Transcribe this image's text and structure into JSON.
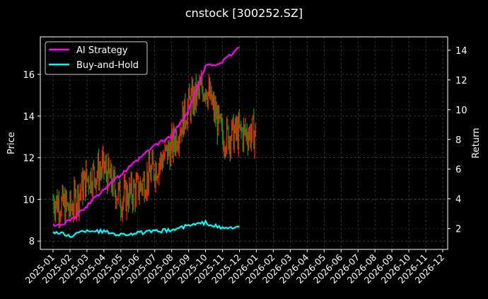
{
  "title": "cnstock [300252.SZ]",
  "chart_data": {
    "type": "line",
    "title": "cnstock [300252.SZ]",
    "xlabel": "",
    "ylabel": "Price",
    "ylabel_right": "Return",
    "grid": true,
    "legend_position": "upper left",
    "ylim_left": [
      7.6,
      17.8
    ],
    "ylim_right": [
      0.6,
      14.9
    ],
    "yticks_left": [
      8,
      10,
      12,
      14,
      16
    ],
    "yticks_right": [
      2,
      4,
      6,
      8,
      10,
      12,
      14
    ],
    "xticks": [
      "2025-01",
      "2025-02",
      "2025-03",
      "2025-04",
      "2025-05",
      "2025-06",
      "2025-07",
      "2025-08",
      "2025-09",
      "2025-10",
      "2025-11",
      "2025-12",
      "2026-01",
      "2026-02",
      "2026-03",
      "2026-04",
      "2026-05",
      "2026-06",
      "2026-07",
      "2026-08",
      "2026-09",
      "2026-10",
      "2026-11",
      "2026-12"
    ],
    "price_candles": {
      "description": "Daily OHLC bars (red up / green down), approximate closes by month",
      "x": [
        "2025-01",
        "2025-02",
        "2025-03",
        "2025-04",
        "2025-05",
        "2025-06",
        "2025-07",
        "2025-08",
        "2025-09",
        "2025-10",
        "2025-11",
        "2025-12"
      ],
      "values": [
        10.0,
        9.5,
        11.0,
        11.5,
        10.0,
        10.5,
        11.5,
        12.5,
        14.5,
        15.5,
        13.0,
        13.2
      ],
      "up_color": "#ff2200",
      "down_color": "#228b22"
    },
    "series": [
      {
        "name": "AI Strategy",
        "color": "#ff00ff",
        "axis": "right",
        "x": [
          "2025-01",
          "2025-02",
          "2025-03",
          "2025-04",
          "2025-05",
          "2025-06",
          "2025-07",
          "2025-08",
          "2025-09",
          "2025-10",
          "2025-11",
          "2025-12"
        ],
        "values": [
          2.2,
          2.5,
          3.5,
          4.7,
          5.6,
          6.6,
          7.6,
          8.2,
          10.0,
          12.9,
          13.2,
          14.2
        ]
      },
      {
        "name": "Buy-and-Hold",
        "color": "#00ffff",
        "axis": "right",
        "x": [
          "2025-01",
          "2025-02",
          "2025-03",
          "2025-04",
          "2025-05",
          "2025-06",
          "2025-07",
          "2025-08",
          "2025-09",
          "2025-10",
          "2025-11",
          "2025-12"
        ],
        "values": [
          1.8,
          1.5,
          1.9,
          1.8,
          1.6,
          1.7,
          1.8,
          1.9,
          2.2,
          2.4,
          2.0,
          2.1
        ]
      }
    ]
  },
  "legend": [
    {
      "label": "AI Strategy",
      "color": "#ff00ff"
    },
    {
      "label": "Buy-and-Hold",
      "color": "#00ffff"
    }
  ]
}
